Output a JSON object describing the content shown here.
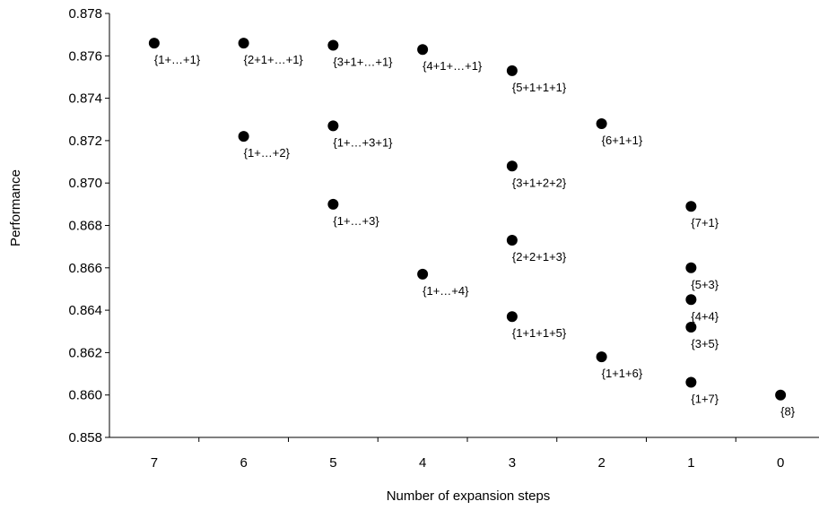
{
  "chart_data": {
    "type": "scatter",
    "title": "",
    "xlabel": "Number of expansion steps",
    "ylabel": "Performance",
    "x_categories": [
      "7",
      "6",
      "5",
      "4",
      "3",
      "2",
      "1",
      "0"
    ],
    "ylim": [
      0.858,
      0.878
    ],
    "y_ticks": [
      "0.858",
      "0.860",
      "0.862",
      "0.864",
      "0.866",
      "0.868",
      "0.870",
      "0.872",
      "0.874",
      "0.876",
      "0.878"
    ],
    "grid": false,
    "legend": "none",
    "marker_color": "#000000",
    "points": [
      {
        "x": "7",
        "y": 0.8766,
        "label": "{1+…+1}"
      },
      {
        "x": "6",
        "y": 0.8766,
        "label": "{2+1+…+1}"
      },
      {
        "x": "6",
        "y": 0.8722,
        "label": "{1+…+2}"
      },
      {
        "x": "5",
        "y": 0.8765,
        "label": "{3+1+…+1}"
      },
      {
        "x": "5",
        "y": 0.8727,
        "label": "{1+…+3+1}"
      },
      {
        "x": "5",
        "y": 0.869,
        "label": "{1+…+3}"
      },
      {
        "x": "4",
        "y": 0.8763,
        "label": "{4+1+…+1}"
      },
      {
        "x": "4",
        "y": 0.8657,
        "label": "{1+…+4}"
      },
      {
        "x": "3",
        "y": 0.8753,
        "label": "{5+1+1+1}"
      },
      {
        "x": "3",
        "y": 0.8708,
        "label": "{3+1+2+2}"
      },
      {
        "x": "3",
        "y": 0.8673,
        "label": "{2+2+1+3}"
      },
      {
        "x": "3",
        "y": 0.8637,
        "label": "{1+1+1+5}"
      },
      {
        "x": "2",
        "y": 0.8728,
        "label": "{6+1+1}"
      },
      {
        "x": "2",
        "y": 0.8618,
        "label": "{1+1+6}"
      },
      {
        "x": "1",
        "y": 0.8689,
        "label": "{7+1}"
      },
      {
        "x": "1",
        "y": 0.866,
        "label": "{5+3}"
      },
      {
        "x": "1",
        "y": 0.8645,
        "label": "{4+4}"
      },
      {
        "x": "1",
        "y": 0.8632,
        "label": "{3+5}"
      },
      {
        "x": "1",
        "y": 0.8606,
        "label": "{1+7}"
      },
      {
        "x": "0",
        "y": 0.86,
        "label": "{8}"
      }
    ]
  }
}
